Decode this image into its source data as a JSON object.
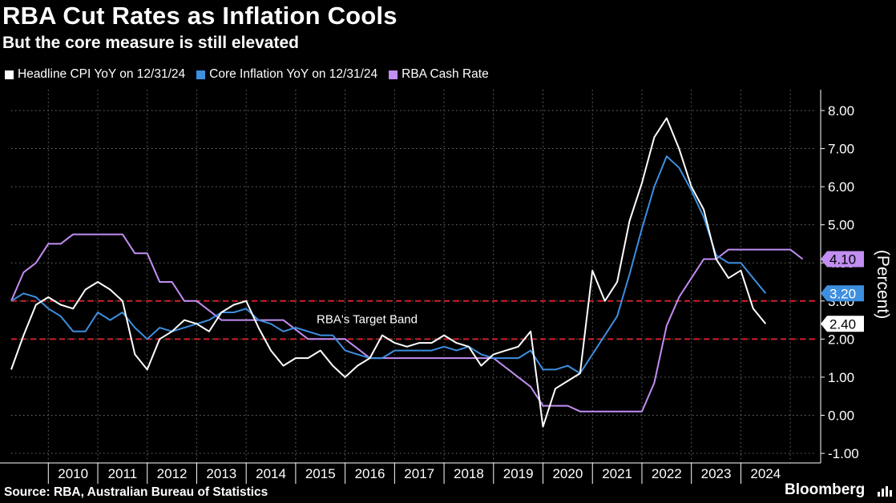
{
  "header": {
    "title": "RBA Cut Rates as Inflation Cools",
    "subtitle": "But the core measure is still elevated"
  },
  "footer": {
    "source": "Source: RBA, Australian Bureau of Statistics",
    "brand": "Bloomberg"
  },
  "colors": {
    "background": "#000000",
    "headline": "#ffffff",
    "core": "#3d8fe0",
    "cash": "#c28ef2",
    "band": "#d11f2a",
    "grid": "#6e6e6e"
  },
  "chart_data": {
    "type": "line",
    "ylabel": "(Percent)",
    "ylim": [
      -1,
      8
    ],
    "yticks": [
      "-1.00",
      "0.00",
      "1.00",
      "2.00",
      "3.00",
      "4.00",
      "5.00",
      "6.00",
      "7.00",
      "8.00"
    ],
    "xticks": [
      "2010",
      "2011",
      "2012",
      "2013",
      "2014",
      "2015",
      "2016",
      "2017",
      "2018",
      "2019",
      "2020",
      "2021",
      "2022",
      "2023",
      "2024"
    ],
    "xlim": [
      2009.25,
      2025.5
    ],
    "grid": true,
    "legend_position": "top-left",
    "annotation": "RBA's Target Band",
    "target_band": [
      2,
      3
    ],
    "series": [
      {
        "name": "Headline CPI YoY on 12/31/24",
        "color": "#ffffff",
        "end_label": "2.40",
        "points": [
          [
            2009.25,
            1.2
          ],
          [
            2009.5,
            2.1
          ],
          [
            2009.75,
            2.9
          ],
          [
            2010,
            3.1
          ],
          [
            2010.25,
            2.9
          ],
          [
            2010.5,
            2.8
          ],
          [
            2010.75,
            3.3
          ],
          [
            2011,
            3.5
          ],
          [
            2011.25,
            3.3
          ],
          [
            2011.5,
            3.0
          ],
          [
            2011.75,
            1.6
          ],
          [
            2012,
            1.2
          ],
          [
            2012.25,
            2.0
          ],
          [
            2012.5,
            2.2
          ],
          [
            2012.75,
            2.5
          ],
          [
            2013,
            2.4
          ],
          [
            2013.25,
            2.2
          ],
          [
            2013.5,
            2.7
          ],
          [
            2013.75,
            2.9
          ],
          [
            2014,
            3.0
          ],
          [
            2014.25,
            2.3
          ],
          [
            2014.5,
            1.7
          ],
          [
            2014.75,
            1.3
          ],
          [
            2015,
            1.5
          ],
          [
            2015.25,
            1.5
          ],
          [
            2015.5,
            1.7
          ],
          [
            2015.75,
            1.3
          ],
          [
            2016,
            1.0
          ],
          [
            2016.25,
            1.3
          ],
          [
            2016.5,
            1.5
          ],
          [
            2016.75,
            2.1
          ],
          [
            2017,
            1.9
          ],
          [
            2017.25,
            1.8
          ],
          [
            2017.5,
            1.9
          ],
          [
            2017.75,
            1.9
          ],
          [
            2018,
            2.1
          ],
          [
            2018.25,
            1.9
          ],
          [
            2018.5,
            1.8
          ],
          [
            2018.75,
            1.3
          ],
          [
            2019,
            1.6
          ],
          [
            2019.25,
            1.7
          ],
          [
            2019.5,
            1.8
          ],
          [
            2019.75,
            2.2
          ],
          [
            2020,
            -0.3
          ],
          [
            2020.25,
            0.7
          ],
          [
            2020.5,
            0.9
          ],
          [
            2020.75,
            1.1
          ],
          [
            2021,
            3.8
          ],
          [
            2021.25,
            3.0
          ],
          [
            2021.5,
            3.5
          ],
          [
            2021.75,
            5.1
          ],
          [
            2022,
            6.1
          ],
          [
            2022.25,
            7.3
          ],
          [
            2022.5,
            7.8
          ],
          [
            2022.75,
            7.0
          ],
          [
            2023,
            6.0
          ],
          [
            2023.25,
            5.4
          ],
          [
            2023.5,
            4.1
          ],
          [
            2023.75,
            3.6
          ],
          [
            2024,
            3.8
          ],
          [
            2024.25,
            2.8
          ],
          [
            2024.5,
            2.4
          ]
        ]
      },
      {
        "name": "Core Inflation YoY on 12/31/24",
        "color": "#3d8fe0",
        "end_label": "3.20",
        "points": [
          [
            2009.25,
            3.0
          ],
          [
            2009.5,
            3.2
          ],
          [
            2009.75,
            3.1
          ],
          [
            2010,
            2.8
          ],
          [
            2010.25,
            2.6
          ],
          [
            2010.5,
            2.2
          ],
          [
            2010.75,
            2.2
          ],
          [
            2011,
            2.7
          ],
          [
            2011.25,
            2.5
          ],
          [
            2011.5,
            2.7
          ],
          [
            2011.75,
            2.3
          ],
          [
            2012,
            2.0
          ],
          [
            2012.25,
            2.3
          ],
          [
            2012.5,
            2.2
          ],
          [
            2012.75,
            2.3
          ],
          [
            2013,
            2.4
          ],
          [
            2013.25,
            2.5
          ],
          [
            2013.5,
            2.7
          ],
          [
            2013.75,
            2.7
          ],
          [
            2014,
            2.8
          ],
          [
            2014.25,
            2.5
          ],
          [
            2014.5,
            2.4
          ],
          [
            2014.75,
            2.2
          ],
          [
            2015,
            2.3
          ],
          [
            2015.25,
            2.2
          ],
          [
            2015.5,
            2.1
          ],
          [
            2015.75,
            2.1
          ],
          [
            2016,
            1.7
          ],
          [
            2016.25,
            1.6
          ],
          [
            2016.5,
            1.5
          ],
          [
            2016.75,
            1.5
          ],
          [
            2017,
            1.7
          ],
          [
            2017.25,
            1.7
          ],
          [
            2017.5,
            1.7
          ],
          [
            2017.75,
            1.7
          ],
          [
            2018,
            1.8
          ],
          [
            2018.25,
            1.7
          ],
          [
            2018.5,
            1.8
          ],
          [
            2018.75,
            1.6
          ],
          [
            2019,
            1.5
          ],
          [
            2019.25,
            1.5
          ],
          [
            2019.5,
            1.5
          ],
          [
            2019.75,
            1.7
          ],
          [
            2020,
            1.2
          ],
          [
            2020.25,
            1.2
          ],
          [
            2020.5,
            1.3
          ],
          [
            2020.75,
            1.1
          ],
          [
            2021,
            1.6
          ],
          [
            2021.25,
            2.1
          ],
          [
            2021.5,
            2.6
          ],
          [
            2021.75,
            3.7
          ],
          [
            2022,
            4.9
          ],
          [
            2022.25,
            6.0
          ],
          [
            2022.5,
            6.8
          ],
          [
            2022.75,
            6.5
          ],
          [
            2023,
            5.9
          ],
          [
            2023.25,
            5.2
          ],
          [
            2023.5,
            4.2
          ],
          [
            2023.75,
            4.0
          ],
          [
            2024,
            4.0
          ],
          [
            2024.25,
            3.6
          ],
          [
            2024.5,
            3.2
          ]
        ]
      },
      {
        "name": "RBA Cash Rate",
        "color": "#c28ef2",
        "end_label": "4.10",
        "points": [
          [
            2009.25,
            3.0
          ],
          [
            2009.5,
            3.75
          ],
          [
            2009.75,
            4.0
          ],
          [
            2010,
            4.5
          ],
          [
            2010.25,
            4.5
          ],
          [
            2010.5,
            4.75
          ],
          [
            2010.75,
            4.75
          ],
          [
            2011,
            4.75
          ],
          [
            2011.25,
            4.75
          ],
          [
            2011.5,
            4.75
          ],
          [
            2011.75,
            4.25
          ],
          [
            2012,
            4.25
          ],
          [
            2012.25,
            3.5
          ],
          [
            2012.5,
            3.5
          ],
          [
            2012.75,
            3.0
          ],
          [
            2013,
            3.0
          ],
          [
            2013.25,
            2.75
          ],
          [
            2013.5,
            2.5
          ],
          [
            2013.75,
            2.5
          ],
          [
            2014,
            2.5
          ],
          [
            2014.25,
            2.5
          ],
          [
            2014.5,
            2.5
          ],
          [
            2014.75,
            2.5
          ],
          [
            2015,
            2.25
          ],
          [
            2015.25,
            2.0
          ],
          [
            2015.5,
            2.0
          ],
          [
            2015.75,
            2.0
          ],
          [
            2016,
            2.0
          ],
          [
            2016.25,
            1.75
          ],
          [
            2016.5,
            1.5
          ],
          [
            2016.75,
            1.5
          ],
          [
            2017,
            1.5
          ],
          [
            2017.25,
            1.5
          ],
          [
            2017.5,
            1.5
          ],
          [
            2017.75,
            1.5
          ],
          [
            2018,
            1.5
          ],
          [
            2018.25,
            1.5
          ],
          [
            2018.5,
            1.5
          ],
          [
            2018.75,
            1.5
          ],
          [
            2019,
            1.5
          ],
          [
            2019.25,
            1.25
          ],
          [
            2019.5,
            1.0
          ],
          [
            2019.75,
            0.75
          ],
          [
            2020,
            0.25
          ],
          [
            2020.25,
            0.25
          ],
          [
            2020.5,
            0.25
          ],
          [
            2020.75,
            0.1
          ],
          [
            2021,
            0.1
          ],
          [
            2021.25,
            0.1
          ],
          [
            2021.5,
            0.1
          ],
          [
            2021.75,
            0.1
          ],
          [
            2022,
            0.1
          ],
          [
            2022.25,
            0.85
          ],
          [
            2022.5,
            2.35
          ],
          [
            2022.75,
            3.1
          ],
          [
            2023,
            3.6
          ],
          [
            2023.25,
            4.1
          ],
          [
            2023.5,
            4.1
          ],
          [
            2023.75,
            4.35
          ],
          [
            2024,
            4.35
          ],
          [
            2024.25,
            4.35
          ],
          [
            2024.5,
            4.35
          ],
          [
            2024.75,
            4.35
          ],
          [
            2025,
            4.35
          ],
          [
            2025.25,
            4.1
          ]
        ]
      }
    ]
  }
}
